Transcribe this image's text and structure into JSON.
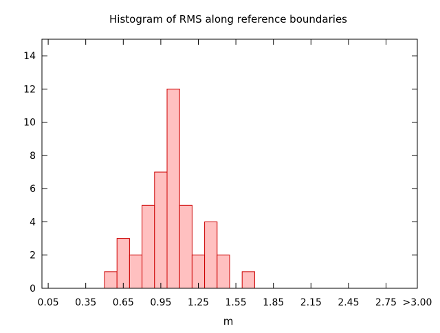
{
  "chart_data": {
    "type": "bar",
    "title": "Histogram of RMS along reference boundaries",
    "xlabel": "m",
    "ylabel": "",
    "x_tick_labels": [
      "0.05",
      "0.35",
      "0.65",
      "0.95",
      "1.25",
      "1.55",
      "1.85",
      "2.15",
      "2.45",
      "2.75",
      ">3.00"
    ],
    "y_ticks": [
      0,
      2,
      4,
      6,
      8,
      10,
      12,
      14
    ],
    "xlim": [
      0.0,
      3.0
    ],
    "ylim": [
      0,
      15
    ],
    "bin_width": 0.1,
    "bins": [
      {
        "x": 0.55,
        "count": 1
      },
      {
        "x": 0.65,
        "count": 3
      },
      {
        "x": 0.75,
        "count": 2
      },
      {
        "x": 0.85,
        "count": 5
      },
      {
        "x": 0.95,
        "count": 7
      },
      {
        "x": 1.05,
        "count": 12
      },
      {
        "x": 1.15,
        "count": 5
      },
      {
        "x": 1.25,
        "count": 2
      },
      {
        "x": 1.35,
        "count": 4
      },
      {
        "x": 1.45,
        "count": 2
      },
      {
        "x": 1.65,
        "count": 1
      }
    ],
    "bar_fill": "#ffc0c0",
    "bar_stroke": "#cc0000",
    "grid": false
  }
}
